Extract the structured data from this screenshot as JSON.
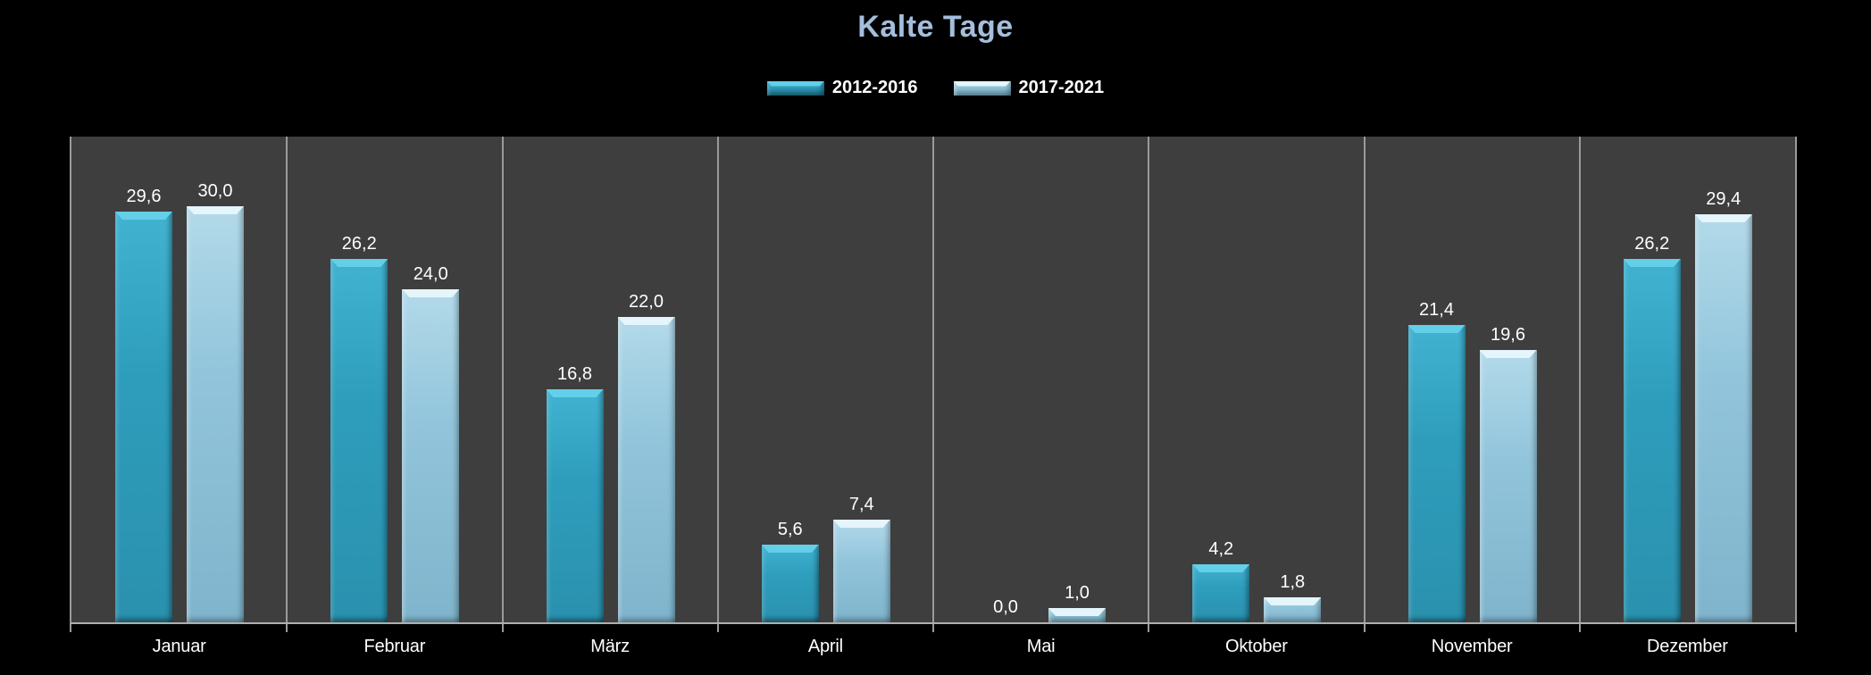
{
  "chart_data": {
    "type": "bar",
    "title": "Kalte Tage",
    "categories": [
      "Januar",
      "Februar",
      "März",
      "April",
      "Mai",
      "Oktober",
      "November",
      "Dezember"
    ],
    "series": [
      {
        "name": "2012-2016",
        "values": [
          29.6,
          26.2,
          16.8,
          5.6,
          0.0,
          4.2,
          21.4,
          26.2
        ],
        "labels": [
          "29,6",
          "26,2",
          "16,8",
          "5,6",
          "0,0",
          "4,2",
          "21,4",
          "26,2"
        ],
        "color": "#2E9DBC"
      },
      {
        "name": "2017-2021",
        "values": [
          30.0,
          24.0,
          22.0,
          7.4,
          1.0,
          1.8,
          19.6,
          29.4
        ],
        "labels": [
          "30,0",
          "24,0",
          "22,0",
          "7,4",
          "1,0",
          "1,8",
          "19,6",
          "29,4"
        ],
        "color": "#92C5DB"
      }
    ],
    "xlabel": "",
    "ylabel": "",
    "ylim": [
      0,
      35
    ],
    "grid": "vertical-category-separators-only",
    "legend_position": "top-center",
    "colors": {
      "page_bg": "#000000",
      "plot_bg": "#3E3E3E",
      "gridline": "#9A9A9A",
      "title": "#A4BEDC",
      "value_labels": "#FFFFFF",
      "axis_labels": "#FFFFFF"
    }
  }
}
